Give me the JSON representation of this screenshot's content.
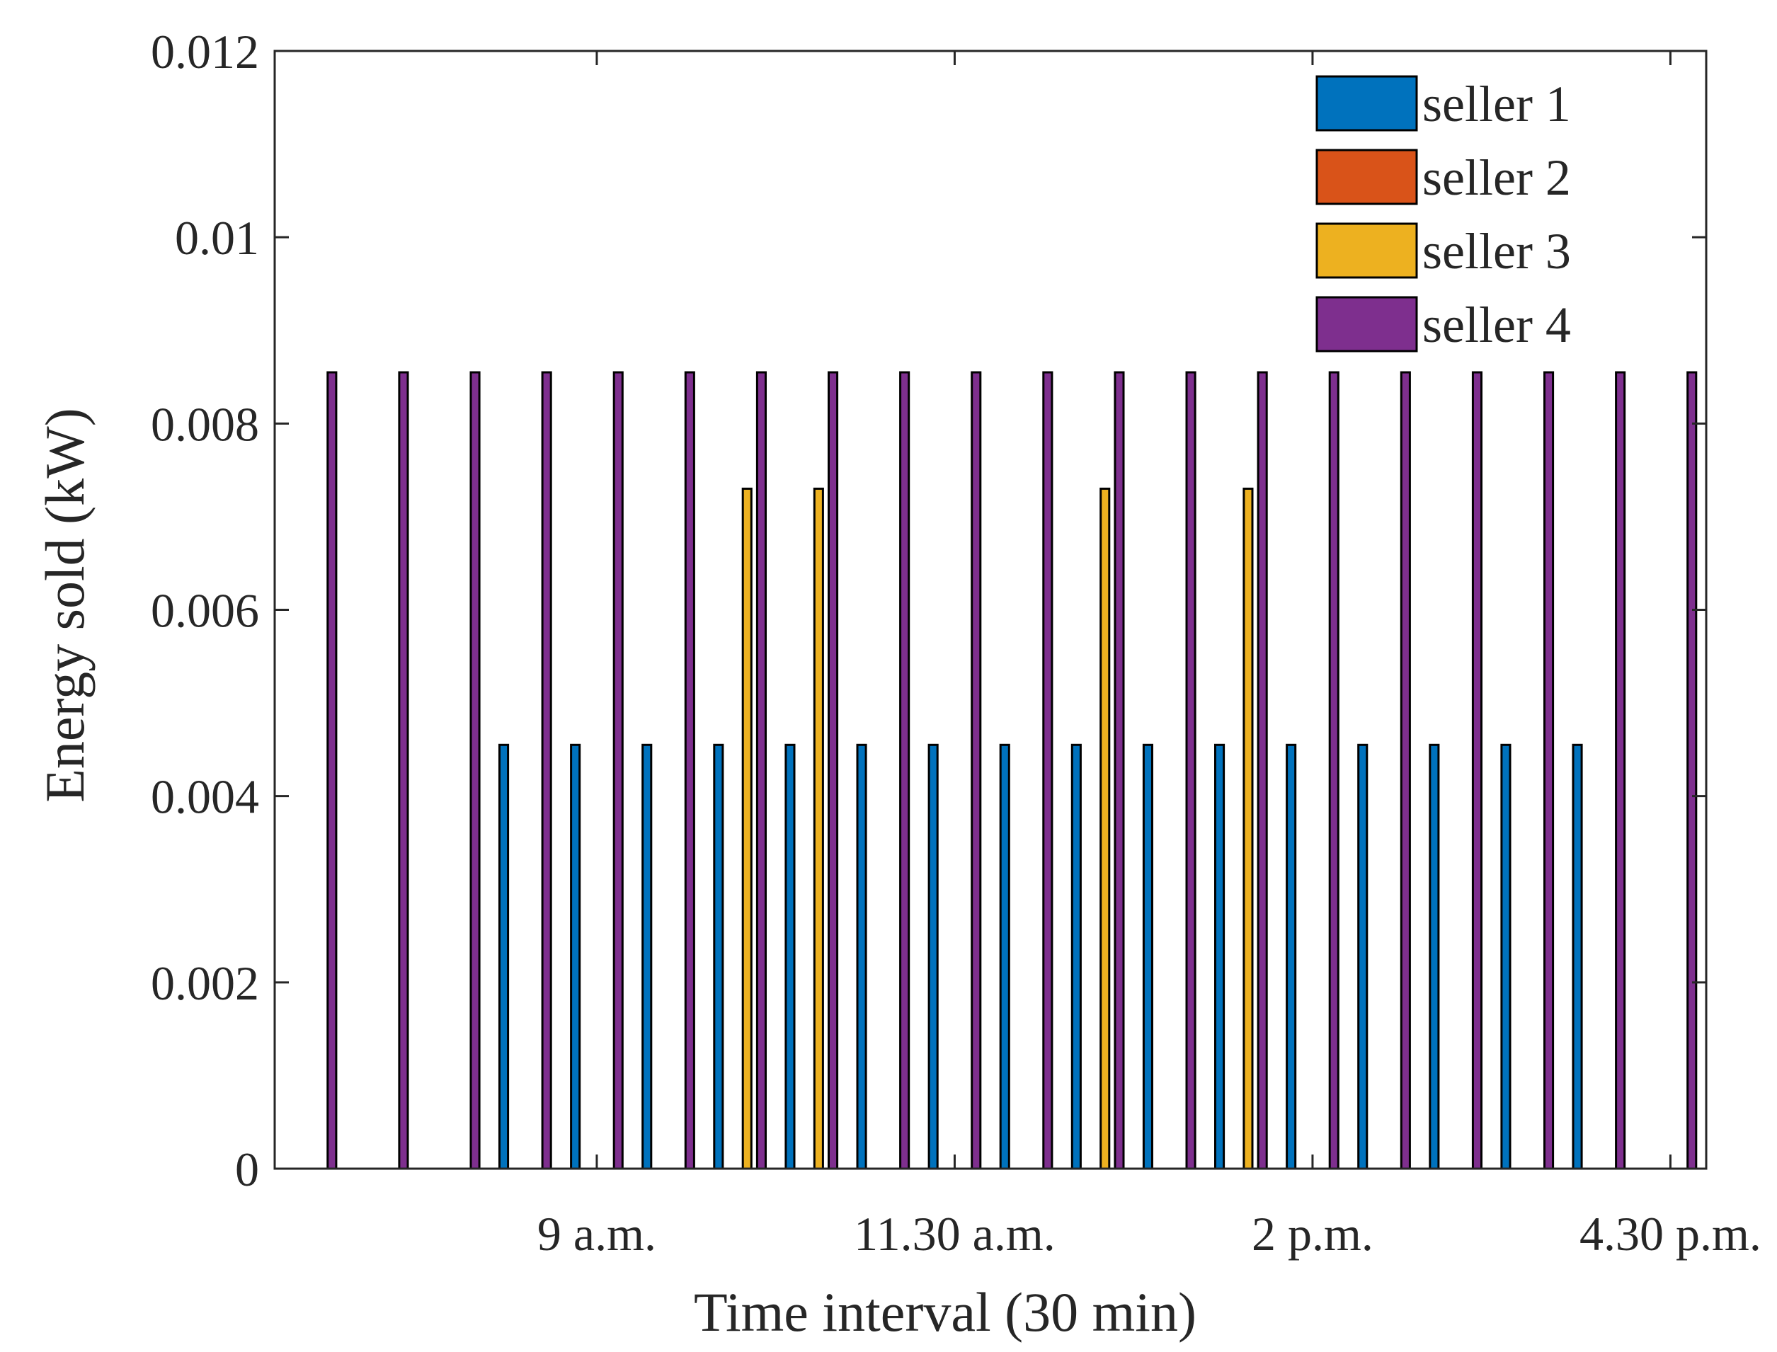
{
  "chart_data": {
    "type": "bar",
    "title": "",
    "xlabel": "Time interval (30 min)",
    "ylabel": "Energy sold (kW)",
    "xlim": [
      0.5,
      20.5
    ],
    "ylim": [
      0,
      0.012
    ],
    "yticks": [
      0,
      0.002,
      0.004,
      0.006,
      0.008,
      0.01,
      0.012
    ],
    "ytick_labels": [
      "0",
      "0.002",
      "0.004",
      "0.006",
      "0.008",
      "0.01",
      "0.012"
    ],
    "xticks": [
      5,
      10,
      15,
      20
    ],
    "xtick_labels": [
      "9 a.m.",
      "11.30 a.m.",
      "2 p.m.",
      "4.30 p.m."
    ],
    "categories": [
      1,
      2,
      3,
      4,
      5,
      6,
      7,
      8,
      9,
      10,
      11,
      12,
      13,
      14,
      15,
      16,
      17,
      18,
      19,
      20
    ],
    "legend_position": "top-right",
    "grid": false,
    "series": [
      {
        "name": "seller 1",
        "color": "#0072BD",
        "values": [
          0,
          0,
          0,
          0.00455,
          0.00455,
          0.00455,
          0.00455,
          0.00455,
          0.00455,
          0.00455,
          0.00455,
          0.00455,
          0.00455,
          0.00455,
          0.00455,
          0.00455,
          0.00455,
          0.00455,
          0.00455,
          0
        ]
      },
      {
        "name": "seller 2",
        "color": "#D95319",
        "values": [
          0,
          0,
          0,
          0,
          0,
          0,
          0,
          0,
          0,
          0,
          0,
          0,
          0,
          0,
          0,
          0,
          0,
          0,
          0,
          0
        ]
      },
      {
        "name": "seller 3",
        "color": "#EDB120",
        "values": [
          0,
          0,
          0,
          0,
          0,
          0,
          0.0073,
          0.0073,
          0,
          0,
          0,
          0.0073,
          0,
          0.0073,
          0,
          0,
          0,
          0,
          0,
          0
        ]
      },
      {
        "name": "seller 4",
        "color": "#7E2F8E",
        "values": [
          0.00855,
          0.00855,
          0.00855,
          0.00855,
          0.00855,
          0.00855,
          0.00855,
          0.00855,
          0.00855,
          0.00855,
          0.00855,
          0.00855,
          0.00855,
          0.00855,
          0.00855,
          0.00855,
          0.00855,
          0.00855,
          0.00855,
          0.00855
        ]
      }
    ]
  }
}
